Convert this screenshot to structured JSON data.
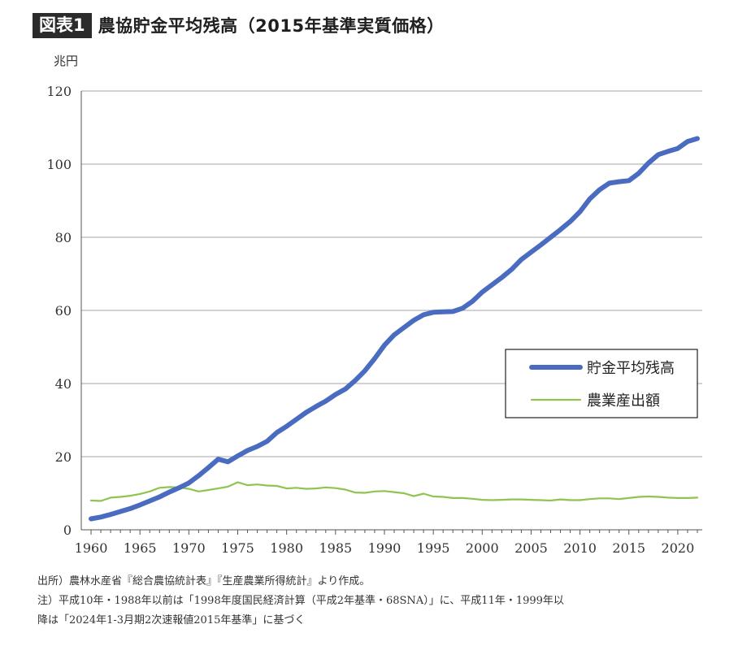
{
  "header": {
    "badge": "図表1",
    "title": "農協貯金平均残高（2015年基準実質価格）"
  },
  "chart_data": {
    "type": "line",
    "unit_label": "兆円",
    "ylim": [
      0,
      120
    ],
    "y_ticks": [
      0,
      20,
      40,
      60,
      80,
      100,
      120
    ],
    "xlim": [
      1959,
      2022.5
    ],
    "x_ticks": [
      1960,
      1965,
      1970,
      1975,
      1980,
      1985,
      1990,
      1995,
      2000,
      2005,
      2010,
      2015,
      2020
    ],
    "grid": true,
    "legend_position": "right",
    "x": [
      1960,
      1961,
      1962,
      1963,
      1964,
      1965,
      1966,
      1967,
      1968,
      1969,
      1970,
      1971,
      1972,
      1973,
      1974,
      1975,
      1976,
      1977,
      1978,
      1979,
      1980,
      1981,
      1982,
      1983,
      1984,
      1985,
      1986,
      1987,
      1988,
      1989,
      1990,
      1991,
      1992,
      1993,
      1994,
      1995,
      1996,
      1997,
      1998,
      1999,
      2000,
      2001,
      2002,
      2003,
      2004,
      2005,
      2006,
      2007,
      2008,
      2009,
      2010,
      2011,
      2012,
      2013,
      2014,
      2015,
      2016,
      2017,
      2018,
      2019,
      2020,
      2021,
      2022
    ],
    "series": [
      {
        "name": "貯金平均残高",
        "color": "#4a6cc0",
        "values": [
          3.0,
          3.5,
          4.2,
          5.0,
          5.8,
          6.8,
          7.9,
          9.0,
          10.3,
          11.5,
          12.8,
          14.8,
          17.0,
          19.3,
          18.6,
          20.2,
          21.7,
          22.8,
          24.2,
          26.6,
          28.3,
          30.2,
          32.1,
          33.7,
          35.2,
          37.0,
          38.5,
          40.8,
          43.5,
          46.8,
          50.5,
          53.3,
          55.3,
          57.3,
          58.8,
          59.5,
          59.6,
          59.7,
          60.6,
          62.5,
          65.0,
          67.0,
          69.0,
          71.2,
          73.9,
          75.9,
          77.9,
          80.0,
          82.1,
          84.3,
          87.0,
          90.5,
          93.0,
          94.8,
          95.2,
          95.5,
          97.5,
          100.3,
          102.6,
          103.5,
          104.3,
          106.2,
          107.0
        ]
      },
      {
        "name": "農業産出額",
        "color": "#8ec44f",
        "values": [
          8.0,
          7.9,
          8.8,
          9.0,
          9.3,
          9.8,
          10.5,
          11.5,
          11.7,
          11.6,
          11.2,
          10.5,
          10.9,
          11.3,
          11.8,
          13.0,
          12.2,
          12.4,
          12.1,
          12.0,
          11.3,
          11.5,
          11.2,
          11.3,
          11.6,
          11.4,
          11.0,
          10.2,
          10.1,
          10.5,
          10.6,
          10.3,
          10.0,
          9.2,
          9.9,
          9.1,
          9.0,
          8.7,
          8.7,
          8.5,
          8.2,
          8.1,
          8.2,
          8.3,
          8.3,
          8.2,
          8.1,
          8.0,
          8.3,
          8.1,
          8.1,
          8.4,
          8.6,
          8.6,
          8.4,
          8.7,
          9.0,
          9.1,
          9.0,
          8.8,
          8.7,
          8.7,
          8.8
        ]
      }
    ]
  },
  "notes": [
    "出所）農林水産省『総合農協統計表』『生産農業所得統計』より作成。",
    "注）平成10年・1988年以前は「1998年度国民経済計算（平成2年基準・68SNA）」に、平成11年・1999年以",
    "降は「2024年1-3月期2次速報値2015年基準」に基づく"
  ]
}
